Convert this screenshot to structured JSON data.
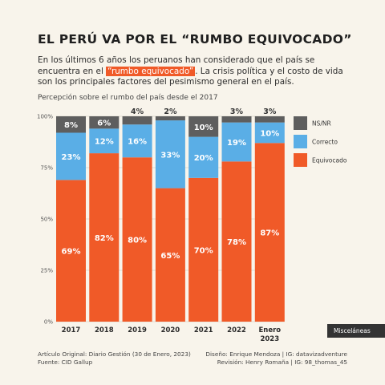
{
  "header": {
    "title": "EL PERÚ VA POR EL “RUMBO EQUIVOCADO”",
    "subtitle_pre": "En los últimos 6 años los peruanos han considerado que el país se encuentra en el ",
    "subtitle_highlight": "“rumbo equivocado”",
    "subtitle_post": ". La crisis política y el costo de vida son los principales factores del pesimismo general en el país."
  },
  "chart_caption": "Percepción sobre el rumbo del país desde el 2017",
  "chart_data": {
    "type": "bar",
    "stacked": true,
    "categories": [
      "2017",
      "2018",
      "2019",
      "2020",
      "2021",
      "2022",
      "Enero 2023"
    ],
    "series": [
      {
        "name": "Equivocado",
        "color": "#f05a28",
        "values": [
          69,
          82,
          80,
          65,
          70,
          78,
          87
        ]
      },
      {
        "name": "Correcto",
        "color": "#5aaee6",
        "values": [
          23,
          12,
          16,
          33,
          20,
          19,
          10
        ]
      },
      {
        "name": "NS/NR",
        "color": "#5e5e5e",
        "values": [
          8,
          6,
          4,
          2,
          10,
          3,
          3
        ]
      }
    ],
    "ylim": [
      0,
      100
    ],
    "yticks": [
      "0%",
      "25%",
      "50%",
      "75%",
      "100%"
    ],
    "legend_position": "right"
  },
  "tag": "Misceláneas",
  "footer": {
    "left": [
      "Artículo Original: Diario Gestión (30 de Enero, 2023)",
      "Fuente: CID Gallup"
    ],
    "right": [
      "Diseño: Enrique Mendoza  |  IG: datavizadventure",
      "Revisión: Henry Romaña  |  IG: 98_thomas_45"
    ]
  }
}
